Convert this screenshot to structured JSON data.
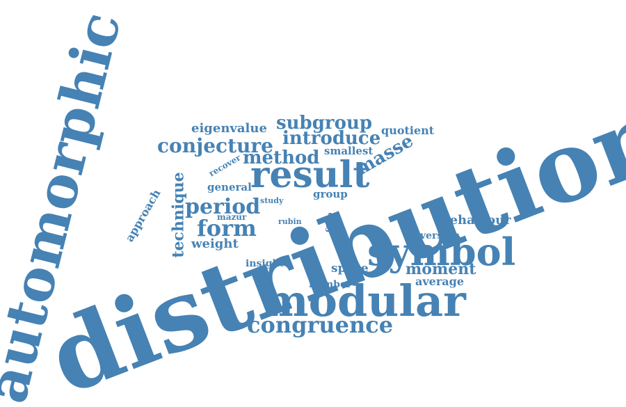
{
  "word_color": "#4682b4",
  "background": "#ffffff",
  "words": {
    "distribution": "distribution",
    "automorphic": "automorphic",
    "modular": "modular",
    "symbol": "symbol",
    "result": "result",
    "congruence": "congruence",
    "conjecture": "conjecture",
    "period": "period",
    "form": "form",
    "method": "method",
    "introduce": "introduce",
    "subgroup": "subgroup",
    "eigenvalue": "eigenvalue",
    "masse": "masse",
    "technique": "technique",
    "moment": "moment",
    "behaviour": "behaviour",
    "weight": "weight",
    "approach": "approach",
    "space": "space",
    "average": "average",
    "number": "number",
    "quotient": "quotient",
    "smallest": "smallest",
    "general": "general",
    "group": "group",
    "insight": "insight",
    "version": "version",
    "recover": "recover",
    "study": "study",
    "mazur": "mazur",
    "rubin": "rubin",
    "cusp": "cusp"
  }
}
